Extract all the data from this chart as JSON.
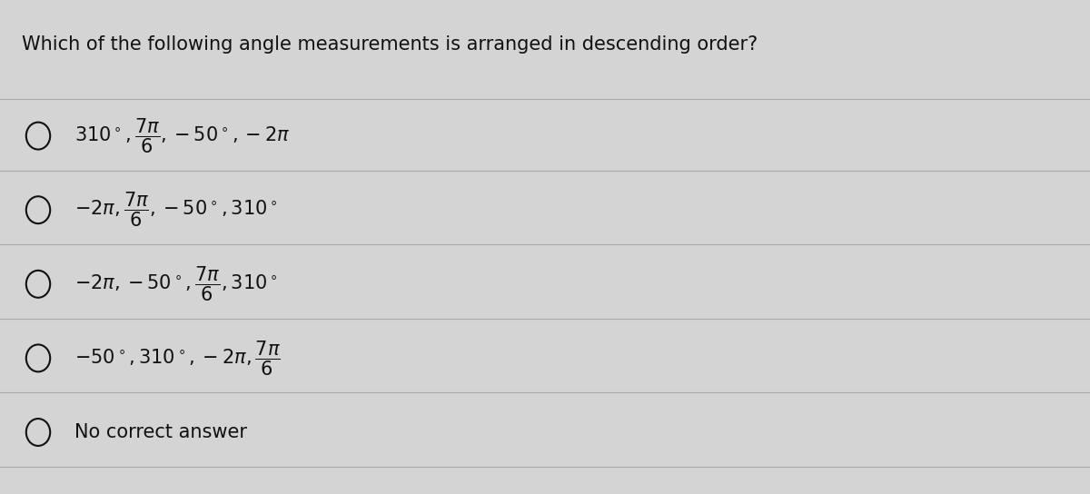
{
  "title": "Which of the following angle measurements is arranged in descending order?",
  "background_color": "#d4d4d4",
  "options": [
    "$310^\\circ, \\dfrac{7\\pi}{6}, -50^\\circ, -2\\pi$",
    "$-2\\pi, \\dfrac{7\\pi}{6}, -50^\\circ, 310^\\circ$",
    "$-2\\pi, -50^\\circ, \\dfrac{7\\pi}{6}, 310^\\circ$",
    "$-50^\\circ, 310^\\circ, -2\\pi, \\dfrac{7\\pi}{6}$",
    "No correct answer"
  ],
  "title_fontsize": 15,
  "option_fontsize": 15,
  "title_color": "#111111",
  "option_color": "#111111",
  "line_color": "#aaaaaa"
}
